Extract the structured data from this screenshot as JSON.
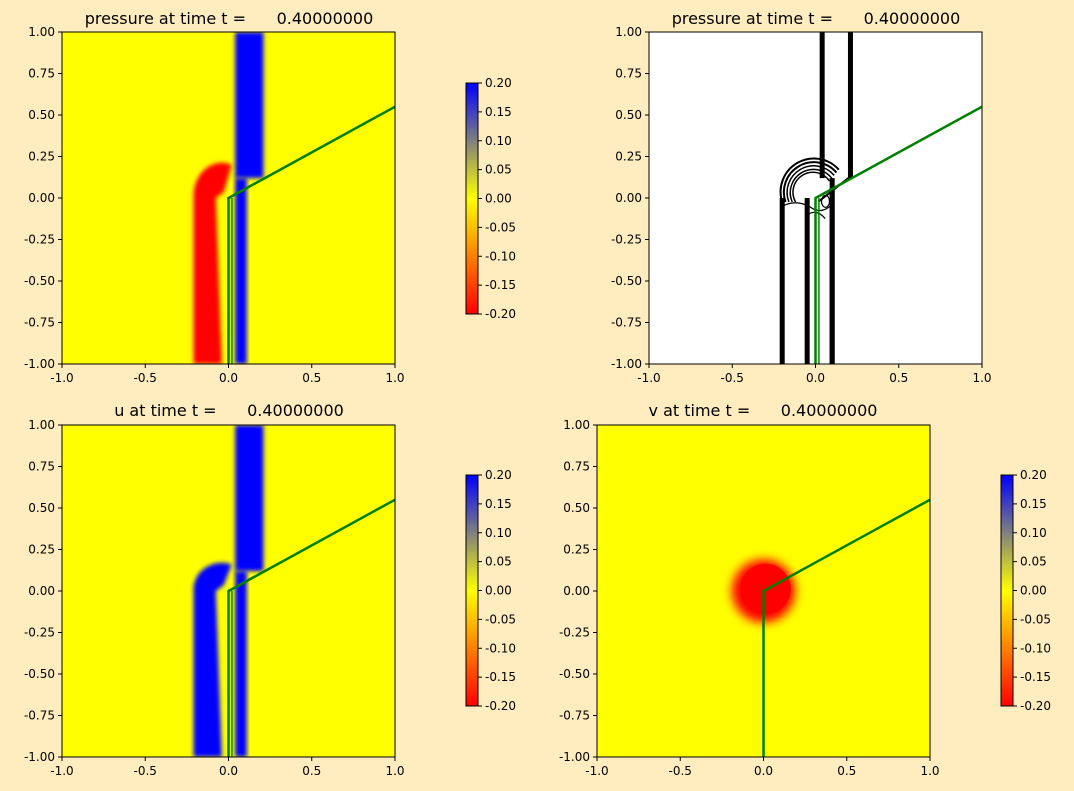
{
  "figure": {
    "background": "#ffedc0"
  },
  "colorbar": {
    "ticks": [
      "0.20",
      "0.15",
      "0.10",
      "0.05",
      "0.00",
      "-0.05",
      "-0.10",
      "-0.15",
      "-0.20"
    ],
    "vmin": -0.2,
    "vmax": 0.2,
    "colors": {
      "high": "#0000ff",
      "mid": "#ffff00",
      "low": "#ff0000"
    }
  },
  "interface_line": {
    "color": "#008000",
    "points": [
      [
        0.0,
        -1.0
      ],
      [
        0.0,
        0.0
      ],
      [
        1.0,
        0.55
      ]
    ]
  },
  "chart_data": [
    {
      "id": "top-left",
      "type": "heatmap",
      "title": "pressure at time t =      0.40000000",
      "xlim": [
        -1,
        1
      ],
      "ylim": [
        -1,
        1
      ],
      "xticks": [
        "-1.0",
        "-0.5",
        "0.0",
        "0.5",
        "1.0"
      ],
      "yticks": [
        "1.00",
        "0.75",
        "0.50",
        "0.25",
        "0.00",
        "-0.25",
        "-0.50",
        "-0.75",
        "-1.00"
      ],
      "colorbar": true,
      "background": "#ffff00",
      "features": [
        {
          "kind": "hook",
          "value": -0.2,
          "color": "#ff0000",
          "x_outer": -0.21,
          "x_inner": -0.04,
          "y_top": 0.2,
          "center_x": -0.04,
          "center_y": 0.0
        },
        {
          "kind": "band",
          "value": 0.2,
          "color": "#0000ff",
          "x0": 0.04,
          "x1": 0.21,
          "y0": 0.12,
          "y1": 1.0
        },
        {
          "kind": "band",
          "value": 0.2,
          "color": "#0000ff",
          "x0": 0.04,
          "x1": 0.11,
          "y0": -1.0,
          "y1": 0.12
        }
      ]
    },
    {
      "id": "top-right",
      "type": "contour",
      "title": "pressure at time t =      0.40000000",
      "xlim": [
        -1,
        1
      ],
      "ylim": [
        -1,
        1
      ],
      "xticks": [
        "-1.0",
        "-0.5",
        "0.0",
        "0.5",
        "1.0"
      ],
      "yticks": [
        "1.00",
        "0.75",
        "0.50",
        "0.25",
        "0.00",
        "-0.25",
        "-0.50",
        "-0.75",
        "-1.00"
      ],
      "colorbar": false,
      "background": "#ffffff",
      "features": []
    },
    {
      "id": "bottom-left",
      "type": "heatmap",
      "title": "u at time t =      0.40000000",
      "xlim": [
        -1,
        1
      ],
      "ylim": [
        -1,
        1
      ],
      "xticks": [
        "-1.0",
        "-0.5",
        "0.0",
        "0.5",
        "1.0"
      ],
      "yticks": [
        "1.00",
        "0.75",
        "0.50",
        "0.25",
        "0.00",
        "-0.25",
        "-0.50",
        "-0.75",
        "-1.00"
      ],
      "colorbar": true,
      "background": "#ffff00",
      "features": [
        {
          "kind": "hook",
          "value": 0.2,
          "color": "#0000ff",
          "x_outer": -0.21,
          "x_inner": -0.04,
          "y_top": 0.16,
          "center_x": -0.04,
          "center_y": 0.0
        },
        {
          "kind": "band",
          "value": 0.2,
          "color": "#0000ff",
          "x0": 0.04,
          "x1": 0.21,
          "y0": 0.12,
          "y1": 1.0
        },
        {
          "kind": "band",
          "value": 0.2,
          "color": "#0000ff",
          "x0": 0.04,
          "x1": 0.11,
          "y0": -1.0,
          "y1": 0.12
        }
      ]
    },
    {
      "id": "bottom-right",
      "type": "heatmap",
      "title": "v at time t =      0.40000000",
      "xlim": [
        -1,
        1
      ],
      "ylim": [
        -1,
        1
      ],
      "xticks": [
        "-1.0",
        "-0.5",
        "0.0",
        "0.5",
        "1.0"
      ],
      "yticks": [
        "1.00",
        "0.75",
        "0.50",
        "0.25",
        "0.00",
        "-0.25",
        "-0.50",
        "-0.75",
        "-1.00"
      ],
      "colorbar": true,
      "background": "#ffff00",
      "features": [
        {
          "kind": "blob",
          "value": -0.2,
          "color": "#ff0000",
          "center_x": 0.0,
          "center_y": 0.0,
          "radius": 0.19
        }
      ]
    }
  ]
}
